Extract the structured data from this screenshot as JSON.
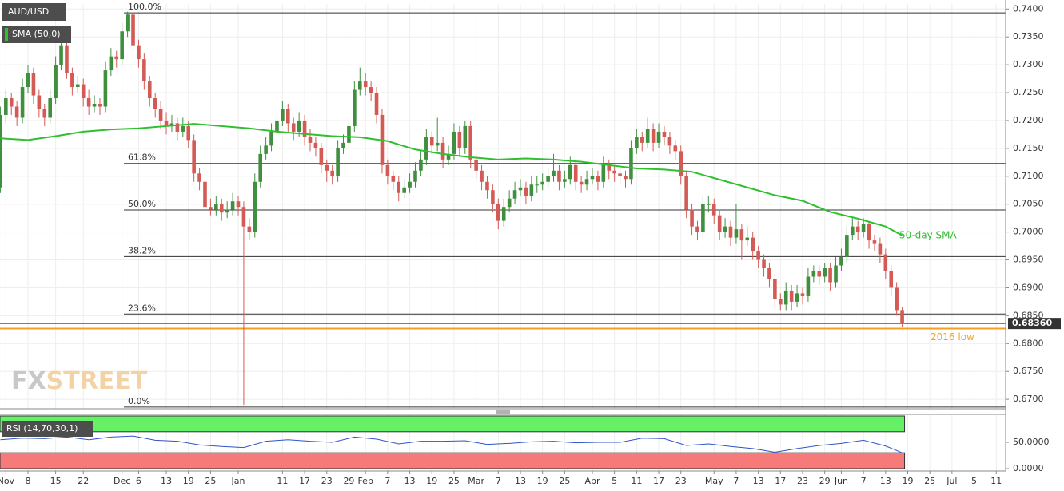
{
  "chart_data": {
    "type": "candlestick",
    "title": "AUD/USD",
    "indicator_label": "SMA (50,0)",
    "watermark": {
      "fx": "FX",
      "street": "STREET"
    },
    "up_color": "#3f8f3f",
    "down_color": "#d45a55",
    "grid": true,
    "xlim": [
      0,
      181.7
    ],
    "xticks": [
      {
        "value": 1,
        "label": "Nov"
      },
      {
        "value": 5,
        "label": "8"
      },
      {
        "value": 10,
        "label": "15"
      },
      {
        "value": 15,
        "label": "22"
      },
      {
        "value": 22,
        "label": "Dec"
      },
      {
        "value": 25,
        "label": "6"
      },
      {
        "value": 30,
        "label": "13"
      },
      {
        "value": 34,
        "label": "19"
      },
      {
        "value": 38,
        "label": "25"
      },
      {
        "value": 43,
        "label": "Jan"
      },
      {
        "value": 51,
        "label": "11"
      },
      {
        "value": 55,
        "label": "17"
      },
      {
        "value": 59,
        "label": "23"
      },
      {
        "value": 63,
        "label": "29"
      },
      {
        "value": 66,
        "label": "Feb"
      },
      {
        "value": 70,
        "label": "7"
      },
      {
        "value": 74,
        "label": "13"
      },
      {
        "value": 78,
        "label": "19"
      },
      {
        "value": 82,
        "label": "25"
      },
      {
        "value": 86,
        "label": "Mar"
      },
      {
        "value": 90,
        "label": "7"
      },
      {
        "value": 94,
        "label": "13"
      },
      {
        "value": 98,
        "label": "19"
      },
      {
        "value": 102,
        "label": "25"
      },
      {
        "value": 107,
        "label": "Apr"
      },
      {
        "value": 111,
        "label": "5"
      },
      {
        "value": 115,
        "label": "11"
      },
      {
        "value": 119,
        "label": "17"
      },
      {
        "value": 123,
        "label": "23"
      },
      {
        "value": 129,
        "label": "May"
      },
      {
        "value": 133,
        "label": "7"
      },
      {
        "value": 137,
        "label": "13"
      },
      {
        "value": 141,
        "label": "17"
      },
      {
        "value": 145,
        "label": "23"
      },
      {
        "value": 149,
        "label": "29"
      },
      {
        "value": 152,
        "label": "Jun"
      },
      {
        "value": 156,
        "label": "7"
      },
      {
        "value": 160,
        "label": "13"
      },
      {
        "value": 164,
        "label": "19"
      },
      {
        "value": 168,
        "label": "25"
      },
      {
        "value": 172,
        "label": "Jul"
      },
      {
        "value": 176,
        "label": "5"
      },
      {
        "value": 180,
        "label": "11"
      }
    ],
    "ylim": [
      0.6683,
      0.7409
    ],
    "yticks": [
      {
        "value": 0.67,
        "label": "0.6700"
      },
      {
        "value": 0.675,
        "label": "0.6750"
      },
      {
        "value": 0.68,
        "label": "0.6800"
      },
      {
        "value": 0.685,
        "label": "0.6850"
      },
      {
        "value": 0.69,
        "label": "0.6900"
      },
      {
        "value": 0.695,
        "label": "0.6950"
      },
      {
        "value": 0.7,
        "label": "0.7000"
      },
      {
        "value": 0.705,
        "label": "0.7050"
      },
      {
        "value": 0.71,
        "label": "0.7100"
      },
      {
        "value": 0.715,
        "label": "0.7150"
      },
      {
        "value": 0.72,
        "label": "0.7200"
      },
      {
        "value": 0.725,
        "label": "0.7250"
      },
      {
        "value": 0.73,
        "label": "0.7300"
      },
      {
        "value": 0.735,
        "label": "0.7350"
      },
      {
        "value": 0.74,
        "label": "0.7400"
      }
    ],
    "ohlc": [
      [
        0.708,
        0.7225,
        0.707,
        0.721
      ],
      [
        0.721,
        0.7255,
        0.7195,
        0.724
      ],
      [
        0.724,
        0.725,
        0.721,
        0.7225
      ],
      [
        0.7225,
        0.7235,
        0.719,
        0.7205
      ],
      [
        0.7205,
        0.7275,
        0.7195,
        0.726
      ],
      [
        0.726,
        0.73,
        0.725,
        0.7285
      ],
      [
        0.7285,
        0.7295,
        0.723,
        0.7245
      ],
      [
        0.7245,
        0.7255,
        0.7205,
        0.722
      ],
      [
        0.722,
        0.723,
        0.719,
        0.7205
      ],
      [
        0.7205,
        0.7255,
        0.7195,
        0.724
      ],
      [
        0.724,
        0.7315,
        0.723,
        0.73
      ],
      [
        0.73,
        0.735,
        0.729,
        0.7335
      ],
      [
        0.7335,
        0.734,
        0.7275,
        0.7285
      ],
      [
        0.7285,
        0.7295,
        0.7245,
        0.726
      ],
      [
        0.726,
        0.728,
        0.725,
        0.7265
      ],
      [
        0.7265,
        0.7275,
        0.7225,
        0.724
      ],
      [
        0.724,
        0.7255,
        0.721,
        0.7225
      ],
      [
        0.7225,
        0.7245,
        0.7215,
        0.723
      ],
      [
        0.723,
        0.724,
        0.721,
        0.7225
      ],
      [
        0.7225,
        0.7305,
        0.7215,
        0.729
      ],
      [
        0.729,
        0.733,
        0.728,
        0.7315
      ],
      [
        0.7315,
        0.7325,
        0.7295,
        0.731
      ],
      [
        0.731,
        0.7375,
        0.73,
        0.736
      ],
      [
        0.736,
        0.7395,
        0.735,
        0.739
      ],
      [
        0.739,
        0.7395,
        0.732,
        0.7335
      ],
      [
        0.7335,
        0.7345,
        0.7295,
        0.731
      ],
      [
        0.731,
        0.732,
        0.7255,
        0.727
      ],
      [
        0.727,
        0.728,
        0.7225,
        0.724
      ],
      [
        0.724,
        0.725,
        0.7205,
        0.722
      ],
      [
        0.722,
        0.7235,
        0.7185,
        0.72
      ],
      [
        0.72,
        0.7215,
        0.7175,
        0.719
      ],
      [
        0.719,
        0.721,
        0.718,
        0.7195
      ],
      [
        0.7195,
        0.7205,
        0.7165,
        0.718
      ],
      [
        0.718,
        0.7205,
        0.717,
        0.719
      ],
      [
        0.719,
        0.72,
        0.715,
        0.7165
      ],
      [
        0.7165,
        0.7175,
        0.709,
        0.7105
      ],
      [
        0.7105,
        0.7115,
        0.7075,
        0.709
      ],
      [
        0.709,
        0.71,
        0.703,
        0.7045
      ],
      [
        0.7045,
        0.706,
        0.703,
        0.704
      ],
      [
        0.704,
        0.7065,
        0.703,
        0.705
      ],
      [
        0.705,
        0.706,
        0.702,
        0.7035
      ],
      [
        0.7035,
        0.7055,
        0.7025,
        0.704
      ],
      [
        0.704,
        0.707,
        0.703,
        0.7055
      ],
      [
        0.7055,
        0.7065,
        0.703,
        0.7045
      ],
      [
        0.7045,
        0.7055,
        0.669,
        0.701
      ],
      [
        0.701,
        0.7025,
        0.6985,
        0.7
      ],
      [
        0.7,
        0.7105,
        0.699,
        0.709
      ],
      [
        0.709,
        0.7155,
        0.708,
        0.714
      ],
      [
        0.714,
        0.717,
        0.713,
        0.7155
      ],
      [
        0.7155,
        0.7195,
        0.7145,
        0.718
      ],
      [
        0.718,
        0.7215,
        0.717,
        0.72
      ],
      [
        0.72,
        0.7235,
        0.719,
        0.722
      ],
      [
        0.722,
        0.723,
        0.718,
        0.7195
      ],
      [
        0.7195,
        0.7205,
        0.7165,
        0.718
      ],
      [
        0.718,
        0.7215,
        0.717,
        0.72
      ],
      [
        0.72,
        0.721,
        0.7155,
        0.717
      ],
      [
        0.717,
        0.7185,
        0.7145,
        0.716
      ],
      [
        0.716,
        0.717,
        0.7135,
        0.715
      ],
      [
        0.715,
        0.716,
        0.7105,
        0.712
      ],
      [
        0.712,
        0.713,
        0.709,
        0.711
      ],
      [
        0.711,
        0.712,
        0.7085,
        0.71
      ],
      [
        0.71,
        0.7165,
        0.709,
        0.715
      ],
      [
        0.715,
        0.7175,
        0.714,
        0.716
      ],
      [
        0.716,
        0.7205,
        0.715,
        0.719
      ],
      [
        0.719,
        0.727,
        0.718,
        0.7255
      ],
      [
        0.7255,
        0.7295,
        0.7245,
        0.727
      ],
      [
        0.727,
        0.7285,
        0.7245,
        0.726
      ],
      [
        0.726,
        0.727,
        0.7235,
        0.725
      ],
      [
        0.725,
        0.726,
        0.7195,
        0.721
      ],
      [
        0.721,
        0.722,
        0.7105,
        0.712
      ],
      [
        0.712,
        0.713,
        0.7085,
        0.71
      ],
      [
        0.71,
        0.711,
        0.7075,
        0.709
      ],
      [
        0.709,
        0.71,
        0.7055,
        0.707
      ],
      [
        0.707,
        0.7095,
        0.706,
        0.708
      ],
      [
        0.708,
        0.7105,
        0.707,
        0.709
      ],
      [
        0.709,
        0.7125,
        0.708,
        0.711
      ],
      [
        0.711,
        0.7145,
        0.71,
        0.713
      ],
      [
        0.713,
        0.7185,
        0.712,
        0.717
      ],
      [
        0.717,
        0.718,
        0.714,
        0.7155
      ],
      [
        0.7155,
        0.7205,
        0.7145,
        0.716
      ],
      [
        0.716,
        0.717,
        0.7115,
        0.713
      ],
      [
        0.713,
        0.7155,
        0.712,
        0.714
      ],
      [
        0.714,
        0.7195,
        0.713,
        0.718
      ],
      [
        0.718,
        0.719,
        0.7135,
        0.715
      ],
      [
        0.715,
        0.72,
        0.714,
        0.719
      ],
      [
        0.719,
        0.72,
        0.7115,
        0.713
      ],
      [
        0.713,
        0.714,
        0.7095,
        0.711
      ],
      [
        0.711,
        0.712,
        0.7075,
        0.709
      ],
      [
        0.709,
        0.71,
        0.706,
        0.7075
      ],
      [
        0.7075,
        0.7085,
        0.7035,
        0.705
      ],
      [
        0.705,
        0.706,
        0.7005,
        0.702
      ],
      [
        0.702,
        0.706,
        0.701,
        0.7045
      ],
      [
        0.7045,
        0.7075,
        0.7035,
        0.706
      ],
      [
        0.706,
        0.709,
        0.705,
        0.7075
      ],
      [
        0.7075,
        0.7095,
        0.7065,
        0.708
      ],
      [
        0.708,
        0.709,
        0.705,
        0.7065
      ],
      [
        0.7065,
        0.71,
        0.7055,
        0.7085
      ],
      [
        0.7085,
        0.71,
        0.707,
        0.7085
      ],
      [
        0.7085,
        0.7105,
        0.7075,
        0.709
      ],
      [
        0.709,
        0.7115,
        0.708,
        0.71
      ],
      [
        0.71,
        0.714,
        0.709,
        0.711
      ],
      [
        0.711,
        0.712,
        0.7075,
        0.709
      ],
      [
        0.709,
        0.711,
        0.708,
        0.7095
      ],
      [
        0.7095,
        0.7135,
        0.7085,
        0.712
      ],
      [
        0.712,
        0.713,
        0.7075,
        0.709
      ],
      [
        0.709,
        0.71,
        0.707,
        0.7085
      ],
      [
        0.7085,
        0.711,
        0.7075,
        0.7095
      ],
      [
        0.7095,
        0.7115,
        0.7085,
        0.71
      ],
      [
        0.71,
        0.711,
        0.7075,
        0.709
      ],
      [
        0.709,
        0.7135,
        0.708,
        0.712
      ],
      [
        0.712,
        0.713,
        0.7095,
        0.711
      ],
      [
        0.711,
        0.712,
        0.709,
        0.7105
      ],
      [
        0.7105,
        0.7115,
        0.7085,
        0.71
      ],
      [
        0.71,
        0.711,
        0.708,
        0.7095
      ],
      [
        0.7095,
        0.7165,
        0.7085,
        0.715
      ],
      [
        0.715,
        0.7185,
        0.714,
        0.717
      ],
      [
        0.717,
        0.718,
        0.7145,
        0.716
      ],
      [
        0.716,
        0.7205,
        0.715,
        0.7185
      ],
      [
        0.7185,
        0.7195,
        0.7145,
        0.716
      ],
      [
        0.716,
        0.7195,
        0.715,
        0.718
      ],
      [
        0.718,
        0.719,
        0.7155,
        0.717
      ],
      [
        0.717,
        0.718,
        0.714,
        0.7155
      ],
      [
        0.7155,
        0.7165,
        0.713,
        0.7145
      ],
      [
        0.7145,
        0.7155,
        0.7085,
        0.71
      ],
      [
        0.71,
        0.711,
        0.7025,
        0.704
      ],
      [
        0.704,
        0.705,
        0.6995,
        0.701
      ],
      [
        0.701,
        0.702,
        0.6985,
        0.7
      ],
      [
        0.7,
        0.7065,
        0.699,
        0.705
      ],
      [
        0.705,
        0.7065,
        0.7035,
        0.705
      ],
      [
        0.705,
        0.706,
        0.7015,
        0.703
      ],
      [
        0.703,
        0.704,
        0.6985,
        0.7
      ],
      [
        0.7,
        0.7025,
        0.699,
        0.701
      ],
      [
        0.701,
        0.702,
        0.6975,
        0.699
      ],
      [
        0.699,
        0.705,
        0.698,
        0.7005
      ],
      [
        0.7005,
        0.7015,
        0.695,
        0.6985
      ],
      [
        0.6985,
        0.701,
        0.6975,
        0.699
      ],
      [
        0.699,
        0.7,
        0.695,
        0.6965
      ],
      [
        0.6965,
        0.6975,
        0.6935,
        0.695
      ],
      [
        0.695,
        0.696,
        0.692,
        0.6935
      ],
      [
        0.6935,
        0.6945,
        0.69,
        0.6915
      ],
      [
        0.6915,
        0.6925,
        0.6865,
        0.688
      ],
      [
        0.688,
        0.689,
        0.686,
        0.687
      ],
      [
        0.687,
        0.691,
        0.686,
        0.6895
      ],
      [
        0.6895,
        0.6905,
        0.686,
        0.6875
      ],
      [
        0.6875,
        0.6905,
        0.6865,
        0.689
      ],
      [
        0.689,
        0.69,
        0.687,
        0.6885
      ],
      [
        0.6885,
        0.6935,
        0.6875,
        0.692
      ],
      [
        0.692,
        0.694,
        0.691,
        0.693
      ],
      [
        0.693,
        0.694,
        0.6905,
        0.692
      ],
      [
        0.692,
        0.6945,
        0.691,
        0.6935
      ],
      [
        0.6935,
        0.6945,
        0.6895,
        0.691
      ],
      [
        0.691,
        0.6955,
        0.69,
        0.694
      ],
      [
        0.694,
        0.697,
        0.693,
        0.6955
      ],
      [
        0.6955,
        0.701,
        0.6945,
        0.6995
      ],
      [
        0.6995,
        0.7025,
        0.6985,
        0.701
      ],
      [
        0.701,
        0.702,
        0.6985,
        0.7
      ],
      [
        0.7,
        0.7025,
        0.699,
        0.7015
      ],
      [
        0.7015,
        0.702,
        0.697,
        0.6985
      ],
      [
        0.6985,
        0.6995,
        0.6965,
        0.698
      ],
      [
        0.698,
        0.699,
        0.6945,
        0.696
      ],
      [
        0.696,
        0.697,
        0.6915,
        0.693
      ],
      [
        0.693,
        0.694,
        0.6885,
        0.69
      ],
      [
        0.69,
        0.691,
        0.685,
        0.686
      ],
      [
        0.686,
        0.6865,
        0.683,
        0.6836
      ]
    ],
    "sma": {
      "name": "50-day SMA",
      "color": "#2fbf2f",
      "x": [
        0,
        5,
        10,
        15,
        20,
        25,
        30,
        35,
        40,
        45,
        50,
        55,
        60,
        65,
        70,
        75,
        80,
        85,
        90,
        95,
        100,
        105,
        110,
        115,
        120,
        125,
        130,
        135,
        140,
        145,
        150,
        155,
        160,
        163
      ],
      "values": [
        0.7168,
        0.7165,
        0.7172,
        0.718,
        0.7184,
        0.7186,
        0.719,
        0.7194,
        0.719,
        0.7186,
        0.718,
        0.7176,
        0.7172,
        0.717,
        0.7163,
        0.7148,
        0.714,
        0.7134,
        0.713,
        0.7132,
        0.713,
        0.7126,
        0.712,
        0.7114,
        0.7112,
        0.7108,
        0.7094,
        0.708,
        0.7066,
        0.7056,
        0.7036,
        0.7024,
        0.701,
        0.6994
      ]
    },
    "fib": {
      "color": "#333333",
      "levels": [
        {
          "label": "100.0%",
          "value": 0.7393
        },
        {
          "label": "61.8%",
          "value": 0.7123
        },
        {
          "label": "50.0%",
          "value": 0.70395
        },
        {
          "label": "38.2%",
          "value": 0.6956
        },
        {
          "label": "23.6%",
          "value": 0.6853
        },
        {
          "label": "0.0%",
          "value": 0.6686
        }
      ]
    },
    "support": {
      "label": "2016 low",
      "value": 0.6827,
      "color": "#f5a020"
    },
    "last_price": {
      "value": 0.6836,
      "label": "0.68360"
    },
    "rsi": {
      "label": "RSI (14,70,30,1)",
      "color": "#2f55c8",
      "ylim": [
        0,
        100
      ],
      "yticks": [
        {
          "value": 0,
          "label": "0.0000"
        },
        {
          "value": 50,
          "label": "50.0000"
        }
      ],
      "upper": 70,
      "lower": 30,
      "x": [
        0,
        4,
        8,
        12,
        16,
        20,
        24,
        28,
        32,
        36,
        40,
        44,
        48,
        52,
        56,
        60,
        64,
        68,
        72,
        76,
        80,
        84,
        88,
        92,
        96,
        100,
        104,
        108,
        112,
        116,
        120,
        124,
        128,
        132,
        136,
        140,
        144,
        148,
        152,
        156,
        160,
        163
      ],
      "values": [
        55,
        58,
        57,
        60,
        55,
        60,
        62,
        54,
        52,
        45,
        42,
        40,
        52,
        55,
        52,
        50,
        60,
        56,
        47,
        52,
        52,
        53,
        46,
        48,
        51,
        52,
        49,
        50,
        50,
        58,
        57,
        44,
        47,
        42,
        38,
        31,
        38,
        44,
        48,
        54,
        43,
        30
      ]
    }
  }
}
